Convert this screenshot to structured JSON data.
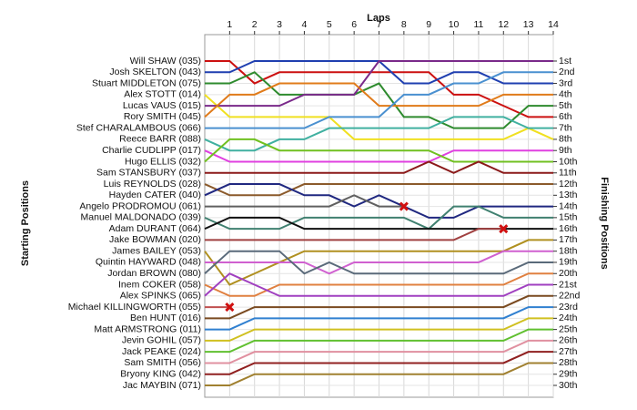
{
  "chart_data": {
    "type": "line",
    "x_label": "Laps",
    "y_label": "Starting Positions",
    "y2_label": "Finishing Positions",
    "x": [
      0,
      1,
      2,
      3,
      4,
      5,
      6,
      7,
      8,
      9,
      10,
      11,
      12,
      13,
      14
    ],
    "xlim": [
      0,
      14
    ],
    "xticks": [
      1,
      2,
      3,
      4,
      5,
      6,
      7,
      8,
      9,
      10,
      11,
      12,
      13,
      14
    ],
    "ylim": [
      1,
      30
    ],
    "y2ticks": [
      {
        "value": 1,
        "label": "1st"
      },
      {
        "value": 2,
        "label": "2nd"
      },
      {
        "value": 3,
        "label": "3rd"
      },
      {
        "value": 4,
        "label": "4th"
      },
      {
        "value": 5,
        "label": "5th"
      },
      {
        "value": 6,
        "label": "6th"
      },
      {
        "value": 7,
        "label": "7th"
      },
      {
        "value": 8,
        "label": "8th"
      },
      {
        "value": 9,
        "label": "9th"
      },
      {
        "value": 10,
        "label": "10th"
      },
      {
        "value": 11,
        "label": "11th"
      },
      {
        "value": 12,
        "label": "12th"
      },
      {
        "value": 13,
        "label": "13th"
      },
      {
        "value": 14,
        "label": "14th"
      },
      {
        "value": 15,
        "label": "15th"
      },
      {
        "value": 16,
        "label": "16th"
      },
      {
        "value": 17,
        "label": "17th"
      },
      {
        "value": 18,
        "label": "18th"
      },
      {
        "value": 19,
        "label": "19th"
      },
      {
        "value": 20,
        "label": "20th"
      },
      {
        "value": 21,
        "label": "21st"
      },
      {
        "value": 22,
        "label": "22nd"
      },
      {
        "value": 23,
        "label": "23rd"
      },
      {
        "value": 24,
        "label": "24th"
      },
      {
        "value": 25,
        "label": "25th"
      },
      {
        "value": 26,
        "label": "26th"
      },
      {
        "value": 27,
        "label": "27th"
      },
      {
        "value": 28,
        "label": "28th"
      },
      {
        "value": 29,
        "label": "29th"
      },
      {
        "value": 30,
        "label": "30th"
      }
    ],
    "grid": true,
    "series": [
      {
        "name": "Will SHAW (035)",
        "color": "#cc1010",
        "values": [
          1,
          1,
          3,
          2,
          2,
          2,
          2,
          2,
          2,
          2,
          4,
          4,
          5,
          6,
          6
        ]
      },
      {
        "name": "Josh SKELTON (043)",
        "color": "#1f3fb0",
        "values": [
          2,
          2,
          1,
          1,
          1,
          1,
          1,
          1,
          3,
          3,
          2,
          2,
          3,
          3,
          3
        ]
      },
      {
        "name": "Stuart MIDDLETON (075)",
        "color": "#2e8b2e",
        "values": [
          3,
          3,
          2,
          4,
          4,
          4,
          4,
          3,
          6,
          6,
          7,
          7,
          7,
          5,
          5
        ]
      },
      {
        "name": "Alex STOTT (014)",
        "color": "#f0e020",
        "values": [
          4,
          6,
          6,
          6,
          6,
          6,
          8,
          8,
          8,
          8,
          8,
          8,
          8,
          7,
          8
        ]
      },
      {
        "name": "Lucas VAUS (015)",
        "color": "#7a2a8a",
        "values": [
          5,
          5,
          5,
          5,
          4,
          4,
          4,
          1,
          1,
          1,
          1,
          1,
          1,
          1,
          1
        ]
      },
      {
        "name": "Rory SMITH (045)",
        "color": "#e07b1a",
        "values": [
          6,
          4,
          4,
          3,
          3,
          3,
          3,
          5,
          5,
          5,
          5,
          5,
          4,
          4,
          4
        ]
      },
      {
        "name": "Stef CHARALAMBOUS (066)",
        "color": "#4a90d0",
        "values": [
          7,
          7,
          7,
          7,
          7,
          6,
          6,
          6,
          4,
          4,
          3,
          3,
          2,
          2,
          2
        ]
      },
      {
        "name": "Reece BARR (088)",
        "color": "#40b0a0",
        "values": [
          8,
          9,
          9,
          8,
          8,
          7,
          7,
          7,
          7,
          7,
          6,
          6,
          6,
          7,
          7
        ]
      },
      {
        "name": "Charlie CUDLIPP (017)",
        "color": "#e040e0",
        "values": [
          9,
          10,
          10,
          10,
          10,
          10,
          10,
          10,
          10,
          10,
          9,
          9,
          9,
          9,
          9
        ]
      },
      {
        "name": "Hugo ELLIS (032)",
        "color": "#70c020",
        "values": [
          10,
          8,
          8,
          9,
          9,
          9,
          9,
          9,
          9,
          9,
          10,
          10,
          10,
          10,
          10
        ]
      },
      {
        "name": "Sam STANSBURY (037)",
        "color": "#8b1a1a",
        "values": [
          11,
          11,
          11,
          11,
          11,
          11,
          11,
          11,
          11,
          10,
          11,
          10,
          11,
          11,
          11
        ]
      },
      {
        "name": "Luis REYNOLDS (028)",
        "color": "#8b5a2b",
        "values": [
          12,
          13,
          13,
          13,
          12,
          12,
          12,
          12,
          12,
          12,
          12,
          12,
          12,
          12,
          12
        ]
      },
      {
        "name": "Hayden CATER (040)",
        "color": "#202880",
        "values": [
          13,
          12,
          12,
          12,
          13,
          13,
          14,
          13,
          14,
          15,
          15,
          14,
          14,
          14,
          14
        ]
      },
      {
        "name": "Angelo PRODROMOU (061)",
        "color": "#606060",
        "values": [
          14,
          14,
          14,
          14,
          14,
          14,
          13,
          14,
          14,
          null,
          null,
          null,
          null,
          null,
          null
        ],
        "retired": true
      },
      {
        "name": "Manuel MALDONADO (039)",
        "color": "#408070",
        "values": [
          15,
          16,
          16,
          16,
          15,
          15,
          15,
          15,
          15,
          16,
          14,
          14,
          15,
          15,
          15
        ]
      },
      {
        "name": "Adam DURANT (064)",
        "color": "#111111",
        "values": [
          16,
          15,
          15,
          15,
          16,
          16,
          16,
          16,
          16,
          16,
          16,
          16,
          16,
          16,
          16
        ]
      },
      {
        "name": "Jake BOWMAN (020)",
        "color": "#a04040",
        "values": [
          17,
          17,
          17,
          17,
          17,
          17,
          17,
          17,
          17,
          17,
          17,
          16,
          16,
          null,
          null
        ],
        "retired": true
      },
      {
        "name": "James BAILEY (053)",
        "color": "#b09020",
        "values": [
          18,
          21,
          20,
          19,
          18,
          18,
          18,
          18,
          18,
          18,
          18,
          18,
          18,
          17,
          17
        ]
      },
      {
        "name": "Quintin HAYWARD (048)",
        "color": "#d060d0",
        "values": [
          19,
          19,
          19,
          19,
          19,
          20,
          19,
          19,
          19,
          19,
          19,
          19,
          18,
          18,
          18
        ]
      },
      {
        "name": "Jordan BROWN (080)",
        "color": "#5a6a7a",
        "values": [
          20,
          18,
          18,
          18,
          20,
          19,
          20,
          20,
          20,
          20,
          20,
          20,
          20,
          19,
          19
        ]
      },
      {
        "name": "Inem COKER (058)",
        "color": "#e08040",
        "values": [
          21,
          22,
          22,
          21,
          21,
          21,
          21,
          21,
          21,
          21,
          21,
          21,
          21,
          20,
          20
        ]
      },
      {
        "name": "Alex SPINKS (065)",
        "color": "#a040c0",
        "values": [
          22,
          20,
          21,
          22,
          22,
          22,
          22,
          22,
          22,
          22,
          22,
          22,
          22,
          21,
          21
        ]
      },
      {
        "name": "Michael KILLINGWORTH (055)",
        "color": "#c05050",
        "values": [
          23,
          23,
          null,
          null,
          null,
          null,
          null,
          null,
          null,
          null,
          null,
          null,
          null,
          null,
          null
        ],
        "retired": true
      },
      {
        "name": "Ben HUNT (016)",
        "color": "#7a4a20",
        "values": [
          24,
          24,
          23,
          23,
          23,
          23,
          23,
          23,
          23,
          23,
          23,
          23,
          23,
          22,
          22
        ]
      },
      {
        "name": "Matt ARMSTRONG (011)",
        "color": "#3080d0",
        "values": [
          25,
          25,
          24,
          24,
          24,
          24,
          24,
          24,
          24,
          24,
          24,
          24,
          24,
          23,
          23
        ]
      },
      {
        "name": "Jevin GOHIL (057)",
        "color": "#d0c020",
        "values": [
          26,
          26,
          25,
          25,
          25,
          25,
          25,
          25,
          25,
          25,
          25,
          25,
          25,
          24,
          24
        ]
      },
      {
        "name": "Jack PEAKE (024)",
        "color": "#60c030",
        "values": [
          27,
          27,
          26,
          26,
          26,
          26,
          26,
          26,
          26,
          26,
          26,
          26,
          26,
          25,
          25
        ]
      },
      {
        "name": "Sam SMITH (056)",
        "color": "#e090a0",
        "values": [
          28,
          28,
          27,
          27,
          27,
          27,
          27,
          27,
          27,
          27,
          27,
          27,
          27,
          26,
          26
        ]
      },
      {
        "name": "Bryony KING (042)",
        "color": "#902020",
        "values": [
          29,
          29,
          28,
          28,
          28,
          28,
          28,
          28,
          28,
          28,
          28,
          28,
          28,
          27,
          27
        ]
      },
      {
        "name": "Jac MAYBIN (071)",
        "color": "#a08030",
        "values": [
          30,
          30,
          29,
          29,
          29,
          29,
          29,
          29,
          29,
          29,
          29,
          29,
          29,
          28,
          28
        ]
      }
    ]
  }
}
